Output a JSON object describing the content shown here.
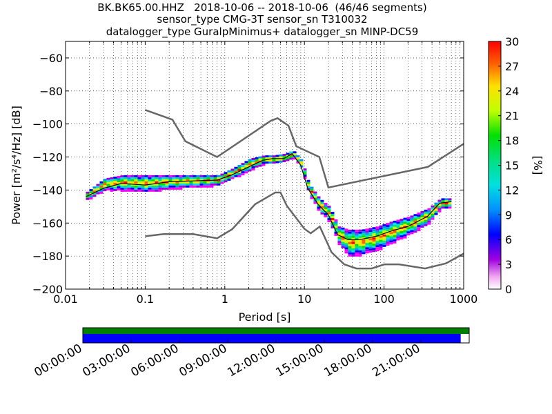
{
  "chart_data": {
    "type": "heatmap",
    "title_lines": [
      "BK.BK65.00.HHZ   2018-10-06 -- 2018-10-06  (46/46 segments)",
      "sensor_type CMG-3T sensor_sn T310032",
      "datalogger_type GuralpMinimus+ datalogger_sn MINP-DC59"
    ],
    "xlabel": "Period [s]",
    "ylabel": "Power [m²/s⁴/Hz] [dB]",
    "xscale": "log",
    "xlim": [
      0.01,
      1000
    ],
    "ylim": [
      -200,
      -50
    ],
    "xticks": [
      {
        "value": 0.01,
        "label": "0.01"
      },
      {
        "value": 0.1,
        "label": "0.1"
      },
      {
        "value": 1,
        "label": "1"
      },
      {
        "value": 10,
        "label": "10"
      },
      {
        "value": 100,
        "label": "100"
      },
      {
        "value": 1000,
        "label": "1000"
      }
    ],
    "yticks": [
      {
        "value": -60,
        "label": "−60"
      },
      {
        "value": -80,
        "label": "−80"
      },
      {
        "value": -100,
        "label": "−100"
      },
      {
        "value": -120,
        "label": "−120"
      },
      {
        "value": -140,
        "label": "−140"
      },
      {
        "value": -160,
        "label": "−160"
      },
      {
        "value": -180,
        "label": "−180"
      },
      {
        "value": -200,
        "label": "−200"
      }
    ],
    "grid": true,
    "colorbar": {
      "label": "[%]",
      "range": [
        0,
        30
      ],
      "ticks": [
        {
          "value": 0,
          "label": "0"
        },
        {
          "value": 3,
          "label": "3"
        },
        {
          "value": 6,
          "label": "6"
        },
        {
          "value": 9,
          "label": "9"
        },
        {
          "value": 12,
          "label": "12"
        },
        {
          "value": 15,
          "label": "15"
        },
        {
          "value": 18,
          "label": "18"
        },
        {
          "value": 21,
          "label": "21"
        },
        {
          "value": 24,
          "label": "24"
        },
        {
          "value": 27,
          "label": "27"
        },
        {
          "value": 30,
          "label": "30"
        }
      ]
    },
    "noise_models": [
      {
        "points": [
          [
            0.1,
            -91.5
          ],
          [
            0.22,
            -97.4
          ],
          [
            0.32,
            -110.5
          ],
          [
            0.8,
            -120
          ],
          [
            3.8,
            -98
          ],
          [
            4.6,
            -96.5
          ],
          [
            6.3,
            -101
          ],
          [
            7.9,
            -113.5
          ],
          [
            15.4,
            -120
          ],
          [
            20,
            -138.5
          ],
          [
            354.8,
            -126
          ],
          [
            1000,
            -112
          ]
        ]
      },
      {
        "points": [
          [
            0.1,
            -168
          ],
          [
            0.17,
            -166.7
          ],
          [
            0.4,
            -166.7
          ],
          [
            0.8,
            -169.2
          ],
          [
            1.24,
            -163.7
          ],
          [
            2.4,
            -148.6
          ],
          [
            4.3,
            -141.5
          ],
          [
            5,
            -141.5
          ],
          [
            6,
            -149.5
          ],
          [
            10,
            -163.5
          ],
          [
            12,
            -166.2
          ],
          [
            15.6,
            -162.1
          ],
          [
            21.9,
            -177.7
          ],
          [
            31.6,
            -185
          ],
          [
            45,
            -187.5
          ],
          [
            70,
            -187.5
          ],
          [
            101,
            -185
          ],
          [
            154,
            -185
          ],
          [
            328,
            -187.5
          ],
          [
            600,
            -184.4
          ],
          [
            1000,
            -178.5
          ]
        ]
      }
    ],
    "median": [
      [
        0.018,
        -144
      ],
      [
        0.03,
        -139
      ],
      [
        0.05,
        -136
      ],
      [
        0.1,
        -137
      ],
      [
        0.2,
        -135
      ],
      [
        0.4,
        -134.5
      ],
      [
        0.8,
        -134
      ],
      [
        1.2,
        -131
      ],
      [
        2,
        -126
      ],
      [
        3,
        -122
      ],
      [
        4,
        -121
      ],
      [
        5.5,
        -121
      ],
      [
        7,
        -118
      ],
      [
        9,
        -125
      ],
      [
        11,
        -139
      ],
      [
        15,
        -149
      ],
      [
        20,
        -155
      ],
      [
        26,
        -167
      ],
      [
        35,
        -170
      ],
      [
        50,
        -170
      ],
      [
        80,
        -168
      ],
      [
        120,
        -165
      ],
      [
        200,
        -162
      ],
      [
        350,
        -156
      ],
      [
        500,
        -148
      ],
      [
        700,
        -147
      ]
    ],
    "band": [
      [
        0.018,
        -146,
        -141
      ],
      [
        0.03,
        -140,
        -133
      ],
      [
        0.05,
        -140,
        -131
      ],
      [
        0.1,
        -141,
        -131
      ],
      [
        0.2,
        -139,
        -131
      ],
      [
        0.4,
        -138,
        -131
      ],
      [
        0.8,
        -137,
        -131
      ],
      [
        1.2,
        -133,
        -127
      ],
      [
        2,
        -128,
        -121
      ],
      [
        3,
        -124,
        -119
      ],
      [
        4,
        -124,
        -119
      ],
      [
        5.5,
        -123,
        -118
      ],
      [
        7,
        -120,
        -116
      ],
      [
        9,
        -127,
        -122
      ],
      [
        11,
        -142,
        -136
      ],
      [
        15,
        -153,
        -145
      ],
      [
        20,
        -159,
        -150
      ],
      [
        26,
        -172,
        -162
      ],
      [
        35,
        -180,
        -164
      ],
      [
        50,
        -179,
        -164
      ],
      [
        80,
        -176,
        -162
      ],
      [
        120,
        -172,
        -159
      ],
      [
        200,
        -167,
        -156
      ],
      [
        350,
        -160,
        -151
      ],
      [
        500,
        -151,
        -145
      ],
      [
        700,
        -151,
        -145
      ]
    ],
    "timeline": {
      "labels": [
        "00:00:00",
        "03:00:00",
        "06:00:00",
        "09:00:00",
        "12:00:00",
        "15:00:00",
        "18:00:00",
        "21:00:00"
      ],
      "coverage_end_fraction": 0.978,
      "colors": {
        "data": "#008000",
        "psd": "#0000ff"
      }
    }
  }
}
